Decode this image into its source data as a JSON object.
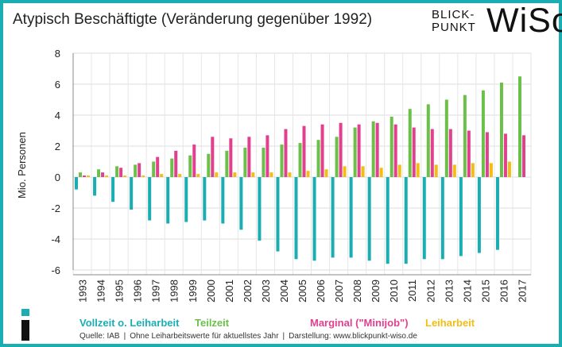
{
  "title": "Atypisch Beschäftigte (Veränderung gegenüber 1992)",
  "logo": {
    "line1": "BLICK-",
    "line2": "PUNKT",
    "wordmark": "WiSo"
  },
  "colors": {
    "border": "#1aaeb3",
    "vollzeit": "#1aaeb3",
    "teilzeit": "#6cc04a",
    "marginal": "#e2408f",
    "leiharbeit": "#f3bd14"
  },
  "source": {
    "part1": "Quelle: IAB",
    "part2": "Ohne Leiharbeitswerte für aktuellstes Jahr",
    "part3": "Darstellung: www.blickpunkt-wiso.de",
    "sep": "|"
  },
  "chart_data": {
    "type": "bar",
    "ylabel": "Mio. Personen",
    "ylim": [
      -6,
      8
    ],
    "yticks": [
      8,
      6,
      4,
      2,
      0,
      -2,
      -4,
      -6
    ],
    "grid": true,
    "legend_position": "bottom",
    "categories": [
      "1993",
      "1994",
      "1995",
      "1996",
      "1997",
      "1998",
      "1999",
      "2000",
      "2001",
      "2002",
      "2003",
      "2004",
      "2005",
      "2006",
      "2007",
      "2008",
      "2009",
      "2010",
      "2011",
      "2012",
      "2013",
      "2014",
      "2015",
      "2016",
      "2017"
    ],
    "series": [
      {
        "name": "Vollzeit o. Leiharbeit",
        "key": "vollzeit",
        "values": [
          -0.8,
          -1.2,
          -1.6,
          -2.1,
          -2.8,
          -3.0,
          -2.9,
          -2.8,
          -3.0,
          -3.4,
          -4.1,
          -4.8,
          -5.3,
          -5.4,
          -5.2,
          -5.2,
          -5.4,
          -5.6,
          -5.6,
          -5.3,
          -5.3,
          -5.1,
          -4.9,
          -4.7,
          null
        ]
      },
      {
        "name": "Teilzeit",
        "key": "teilzeit",
        "values": [
          0.3,
          0.5,
          0.7,
          0.8,
          1.0,
          1.2,
          1.4,
          1.5,
          1.7,
          1.9,
          1.9,
          2.1,
          2.2,
          2.4,
          2.6,
          3.2,
          3.6,
          3.9,
          4.4,
          4.7,
          5.0,
          5.3,
          5.6,
          6.1,
          6.5
        ]
      },
      {
        "name": "Marginal (\"Minijob\")",
        "key": "marginal",
        "values": [
          0.1,
          0.3,
          0.6,
          0.9,
          1.3,
          1.7,
          2.1,
          2.6,
          2.5,
          2.6,
          2.7,
          3.1,
          3.3,
          3.4,
          3.5,
          3.4,
          3.5,
          3.4,
          3.2,
          3.1,
          3.1,
          3.0,
          2.9,
          2.8,
          2.7
        ]
      },
      {
        "name": "Leiharbeit",
        "key": "leiharbeit",
        "values": [
          0.1,
          0.1,
          0.1,
          0.1,
          0.2,
          0.2,
          0.2,
          0.3,
          0.3,
          0.3,
          0.3,
          0.3,
          0.4,
          0.5,
          0.7,
          0.7,
          0.6,
          0.8,
          0.9,
          0.8,
          0.8,
          0.9,
          0.9,
          1.0,
          null
        ]
      }
    ]
  }
}
